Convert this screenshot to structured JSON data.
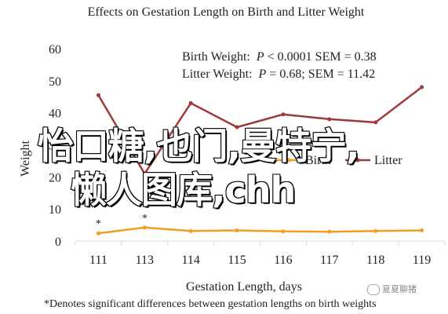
{
  "chart_data": {
    "type": "line",
    "title": "Effects on Gestation Length on Birth and Litter Weight",
    "xlabel": "Gestation Length, days",
    "ylabel": "Weight",
    "categories": [
      "111",
      "113",
      "114",
      "115",
      "116",
      "117",
      "118",
      "119"
    ],
    "ylim": [
      0,
      60
    ],
    "yticks": [
      0,
      10,
      20,
      30,
      40,
      50,
      60
    ],
    "grid": false,
    "legend_position": "center-right",
    "series": [
      {
        "name": "Birth",
        "color": "#F39C1F",
        "values": [
          2.4,
          4.2,
          3.1,
          3.3,
          3.0,
          2.9,
          3.1,
          3.3
        ]
      },
      {
        "name": "Litter",
        "color": "#A0393B",
        "values": [
          45.5,
          21.0,
          43.0,
          35.5,
          39.5,
          38.0,
          37.0,
          48.0
        ]
      }
    ],
    "stats": [
      {
        "label": "Birth Weight:",
        "p_symbol": "P",
        "rest": " < 0.0001 SEM = 0.38"
      },
      {
        "label": "Litter Weight:",
        "p_symbol": "P",
        "rest": " = 0.68; SEM = 11.42"
      }
    ],
    "significance_marks": [
      {
        "category": "111",
        "symbol": "*"
      },
      {
        "category": "113",
        "symbol": "*"
      }
    ],
    "footnote": "*Denotes significant differences between gestation lengths on birth weights"
  },
  "overlay": {
    "line1": "怡口糖,也门,曼特宁,",
    "line2": "懒人图库,chh"
  },
  "watermark": {
    "text": "夏夏聊猪"
  }
}
